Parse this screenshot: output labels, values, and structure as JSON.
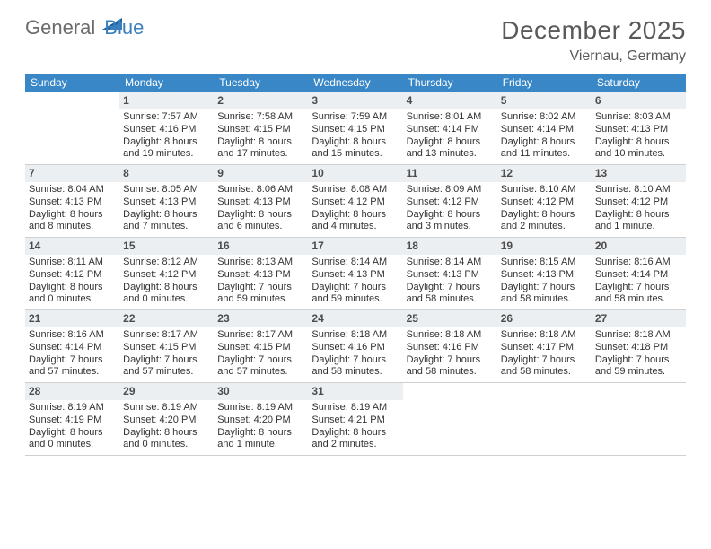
{
  "brand": {
    "part1": "General",
    "part2": "Blue"
  },
  "title": "December 2025",
  "location": "Viernau, Germany",
  "colors": {
    "header_bg": "#3987c6",
    "header_text": "#ffffff",
    "daynum_bg": "#eceff1",
    "border": "#d0d0d0",
    "text": "#333333",
    "title_color": "#595959",
    "brand_gray": "#6b6b6b",
    "brand_blue": "#3b7fbe"
  },
  "weekdays": [
    "Sunday",
    "Monday",
    "Tuesday",
    "Wednesday",
    "Thursday",
    "Friday",
    "Saturday"
  ],
  "weeks": [
    [
      {
        "blank": true
      },
      {
        "num": "1",
        "sunrise": "Sunrise: 7:57 AM",
        "sunset": "Sunset: 4:16 PM",
        "day1": "Daylight: 8 hours",
        "day2": "and 19 minutes."
      },
      {
        "num": "2",
        "sunrise": "Sunrise: 7:58 AM",
        "sunset": "Sunset: 4:15 PM",
        "day1": "Daylight: 8 hours",
        "day2": "and 17 minutes."
      },
      {
        "num": "3",
        "sunrise": "Sunrise: 7:59 AM",
        "sunset": "Sunset: 4:15 PM",
        "day1": "Daylight: 8 hours",
        "day2": "and 15 minutes."
      },
      {
        "num": "4",
        "sunrise": "Sunrise: 8:01 AM",
        "sunset": "Sunset: 4:14 PM",
        "day1": "Daylight: 8 hours",
        "day2": "and 13 minutes."
      },
      {
        "num": "5",
        "sunrise": "Sunrise: 8:02 AM",
        "sunset": "Sunset: 4:14 PM",
        "day1": "Daylight: 8 hours",
        "day2": "and 11 minutes."
      },
      {
        "num": "6",
        "sunrise": "Sunrise: 8:03 AM",
        "sunset": "Sunset: 4:13 PM",
        "day1": "Daylight: 8 hours",
        "day2": "and 10 minutes."
      }
    ],
    [
      {
        "num": "7",
        "sunrise": "Sunrise: 8:04 AM",
        "sunset": "Sunset: 4:13 PM",
        "day1": "Daylight: 8 hours",
        "day2": "and 8 minutes."
      },
      {
        "num": "8",
        "sunrise": "Sunrise: 8:05 AM",
        "sunset": "Sunset: 4:13 PM",
        "day1": "Daylight: 8 hours",
        "day2": "and 7 minutes."
      },
      {
        "num": "9",
        "sunrise": "Sunrise: 8:06 AM",
        "sunset": "Sunset: 4:13 PM",
        "day1": "Daylight: 8 hours",
        "day2": "and 6 minutes."
      },
      {
        "num": "10",
        "sunrise": "Sunrise: 8:08 AM",
        "sunset": "Sunset: 4:12 PM",
        "day1": "Daylight: 8 hours",
        "day2": "and 4 minutes."
      },
      {
        "num": "11",
        "sunrise": "Sunrise: 8:09 AM",
        "sunset": "Sunset: 4:12 PM",
        "day1": "Daylight: 8 hours",
        "day2": "and 3 minutes."
      },
      {
        "num": "12",
        "sunrise": "Sunrise: 8:10 AM",
        "sunset": "Sunset: 4:12 PM",
        "day1": "Daylight: 8 hours",
        "day2": "and 2 minutes."
      },
      {
        "num": "13",
        "sunrise": "Sunrise: 8:10 AM",
        "sunset": "Sunset: 4:12 PM",
        "day1": "Daylight: 8 hours",
        "day2": "and 1 minute."
      }
    ],
    [
      {
        "num": "14",
        "sunrise": "Sunrise: 8:11 AM",
        "sunset": "Sunset: 4:12 PM",
        "day1": "Daylight: 8 hours",
        "day2": "and 0 minutes."
      },
      {
        "num": "15",
        "sunrise": "Sunrise: 8:12 AM",
        "sunset": "Sunset: 4:12 PM",
        "day1": "Daylight: 8 hours",
        "day2": "and 0 minutes."
      },
      {
        "num": "16",
        "sunrise": "Sunrise: 8:13 AM",
        "sunset": "Sunset: 4:13 PM",
        "day1": "Daylight: 7 hours",
        "day2": "and 59 minutes."
      },
      {
        "num": "17",
        "sunrise": "Sunrise: 8:14 AM",
        "sunset": "Sunset: 4:13 PM",
        "day1": "Daylight: 7 hours",
        "day2": "and 59 minutes."
      },
      {
        "num": "18",
        "sunrise": "Sunrise: 8:14 AM",
        "sunset": "Sunset: 4:13 PM",
        "day1": "Daylight: 7 hours",
        "day2": "and 58 minutes."
      },
      {
        "num": "19",
        "sunrise": "Sunrise: 8:15 AM",
        "sunset": "Sunset: 4:13 PM",
        "day1": "Daylight: 7 hours",
        "day2": "and 58 minutes."
      },
      {
        "num": "20",
        "sunrise": "Sunrise: 8:16 AM",
        "sunset": "Sunset: 4:14 PM",
        "day1": "Daylight: 7 hours",
        "day2": "and 58 minutes."
      }
    ],
    [
      {
        "num": "21",
        "sunrise": "Sunrise: 8:16 AM",
        "sunset": "Sunset: 4:14 PM",
        "day1": "Daylight: 7 hours",
        "day2": "and 57 minutes."
      },
      {
        "num": "22",
        "sunrise": "Sunrise: 8:17 AM",
        "sunset": "Sunset: 4:15 PM",
        "day1": "Daylight: 7 hours",
        "day2": "and 57 minutes."
      },
      {
        "num": "23",
        "sunrise": "Sunrise: 8:17 AM",
        "sunset": "Sunset: 4:15 PM",
        "day1": "Daylight: 7 hours",
        "day2": "and 57 minutes."
      },
      {
        "num": "24",
        "sunrise": "Sunrise: 8:18 AM",
        "sunset": "Sunset: 4:16 PM",
        "day1": "Daylight: 7 hours",
        "day2": "and 58 minutes."
      },
      {
        "num": "25",
        "sunrise": "Sunrise: 8:18 AM",
        "sunset": "Sunset: 4:16 PM",
        "day1": "Daylight: 7 hours",
        "day2": "and 58 minutes."
      },
      {
        "num": "26",
        "sunrise": "Sunrise: 8:18 AM",
        "sunset": "Sunset: 4:17 PM",
        "day1": "Daylight: 7 hours",
        "day2": "and 58 minutes."
      },
      {
        "num": "27",
        "sunrise": "Sunrise: 8:18 AM",
        "sunset": "Sunset: 4:18 PM",
        "day1": "Daylight: 7 hours",
        "day2": "and 59 minutes."
      }
    ],
    [
      {
        "num": "28",
        "sunrise": "Sunrise: 8:19 AM",
        "sunset": "Sunset: 4:19 PM",
        "day1": "Daylight: 8 hours",
        "day2": "and 0 minutes."
      },
      {
        "num": "29",
        "sunrise": "Sunrise: 8:19 AM",
        "sunset": "Sunset: 4:20 PM",
        "day1": "Daylight: 8 hours",
        "day2": "and 0 minutes."
      },
      {
        "num": "30",
        "sunrise": "Sunrise: 8:19 AM",
        "sunset": "Sunset: 4:20 PM",
        "day1": "Daylight: 8 hours",
        "day2": "and 1 minute."
      },
      {
        "num": "31",
        "sunrise": "Sunrise: 8:19 AM",
        "sunset": "Sunset: 4:21 PM",
        "day1": "Daylight: 8 hours",
        "day2": "and 2 minutes."
      },
      {
        "blank": true
      },
      {
        "blank": true
      },
      {
        "blank": true
      }
    ]
  ]
}
